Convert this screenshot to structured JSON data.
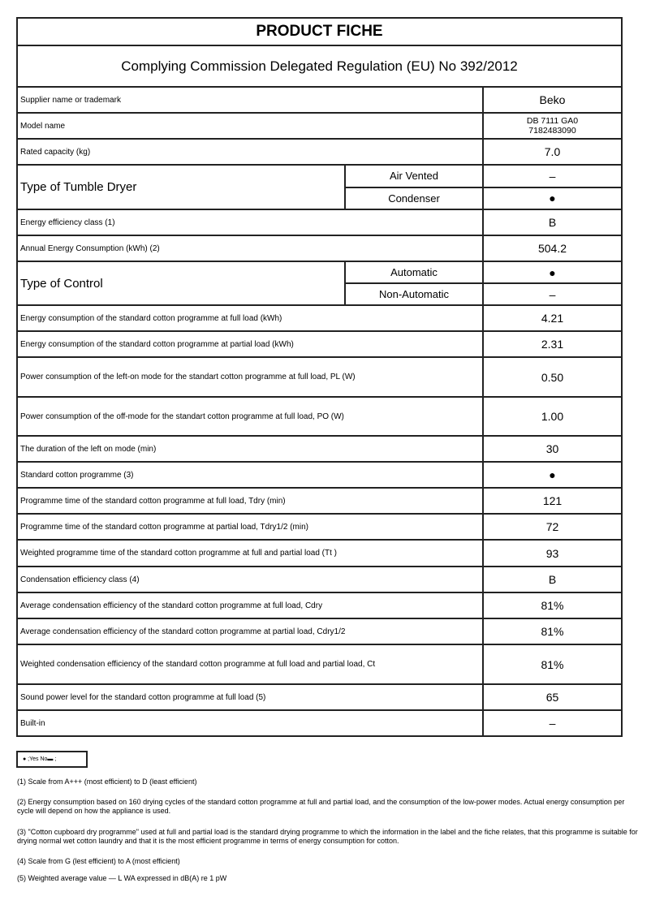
{
  "title": "PRODUCT FICHE",
  "subtitle": "Complying Commission Delegated Regulation (EU) No 392/2012",
  "rows": [
    {
      "label": "Supplier name or trademark",
      "value": "Beko"
    },
    {
      "label": "Model name",
      "value": "DB 7111 GA0",
      "value2": "7182483090"
    },
    {
      "label": "Rated capacity (kg)",
      "value": "7.0"
    },
    {
      "label": "Type of Tumble Dryer",
      "options": [
        {
          "label": "Air Vented",
          "value": "–"
        },
        {
          "label": "Condenser",
          "value": "●"
        }
      ]
    },
    {
      "label": "Energy efficiency class (1)",
      "value": "B"
    },
    {
      "label": "Annual Energy Consumption (kWh) (2)",
      "value": "504.2"
    },
    {
      "label": "Type of Control",
      "options": [
        {
          "label": "Automatic",
          "value": "●"
        },
        {
          "label": "Non-Automatic",
          "value": "–"
        }
      ]
    },
    {
      "label": "Energy consumption of the standard cotton programme at full load (kWh)",
      "value": "4.21"
    },
    {
      "label": "Energy consumption of the standard cotton programme at partial load (kWh)",
      "value": "2.31"
    },
    {
      "label": "Power consumption of the left-on mode for the standart cotton programme at full load, PL (W)",
      "value": "0.50"
    },
    {
      "label": "Power consumption of the off-mode for the standart cotton programme at full load, PO (W)",
      "value": "1.00"
    },
    {
      "label": "The duration of the left on mode (min)",
      "value": "30"
    },
    {
      "label": "Standard cotton programme (3)",
      "value": "●"
    },
    {
      "label": "Programme time of the standard cotton programme at full load, Tdry (min)",
      "value": "121"
    },
    {
      "label": "Programme time of the standard cotton programme at partial load, Tdry1/2 (min)",
      "value": "72"
    },
    {
      "label": "Weighted programme time of the standard cotton programme at full and partial load (Tt )",
      "value": "93"
    },
    {
      "label": "Condensation efficiency class (4)",
      "value": "B"
    },
    {
      "label": "Average condensation efficiency of the standard cotton programme at full load, Cdry",
      "value": "81%"
    },
    {
      "label": "Average condensation efficiency of the standard cotton programme at partial load, Cdry1/2",
      "value": "81%"
    },
    {
      "label": "Weighted condensation efficiency of the standard cotton programme at full load and partial load, Ct",
      "value": "81%"
    },
    {
      "label": "Sound power level for the standard cotton programme at full load (5)",
      "value": "65"
    },
    {
      "label": "Built-in",
      "value": "–"
    }
  ],
  "legend": "● ;Yes No▬ ;",
  "footnotes": [
    "(1) Scale from A+++ (most efficient) to D (least efficient)",
    "(2) Energy consumption based on 160 drying cycles of the standard cotton programme at full and partial load, and the consumption of the low-power modes. Actual energy consumption per cycle will depend on how the appliance is used.",
    "(3) \"Cotton cupboard dry programme\" used at full and partial load is the standard drying programme to which the information  in the label and the fiche relates, that this programme is suitable for drying normal wet cotton laundry and that it is the most efficient programme in terms of energy consumption for cotton.",
    "(4) Scale from G (lest efficient) to A (most efficient)",
    "(5) Weighted average value — L WA    expressed in dB(A) re 1 pW"
  ]
}
